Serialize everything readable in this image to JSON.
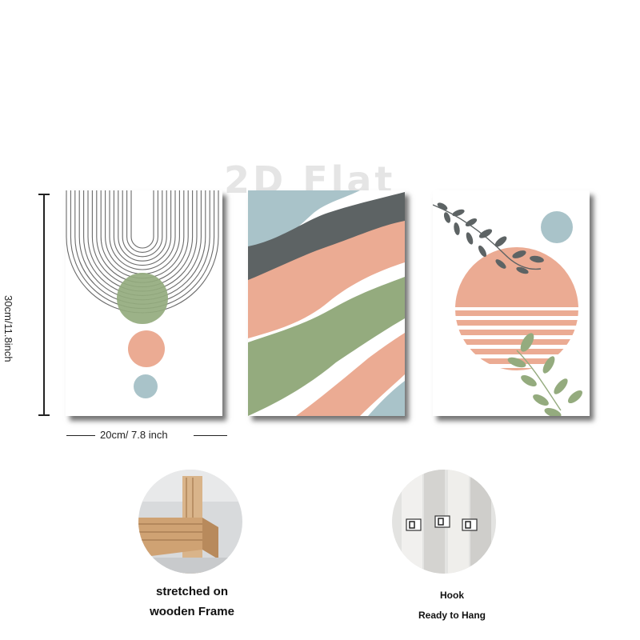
{
  "watermark": "2D Flat",
  "dimensions": {
    "height_label": "30cm/11.8inch",
    "width_label": "20cm/ 7.8 inch"
  },
  "features": [
    {
      "line1": "stretched on",
      "line2": "wooden Frame"
    },
    {
      "line1": "Hook",
      "line2": "Ready to Hang"
    }
  ],
  "palette": {
    "sage": "#94ab7e",
    "peach": "#ebab93",
    "blue": "#a9c3c9",
    "gray": "#5d6364"
  }
}
